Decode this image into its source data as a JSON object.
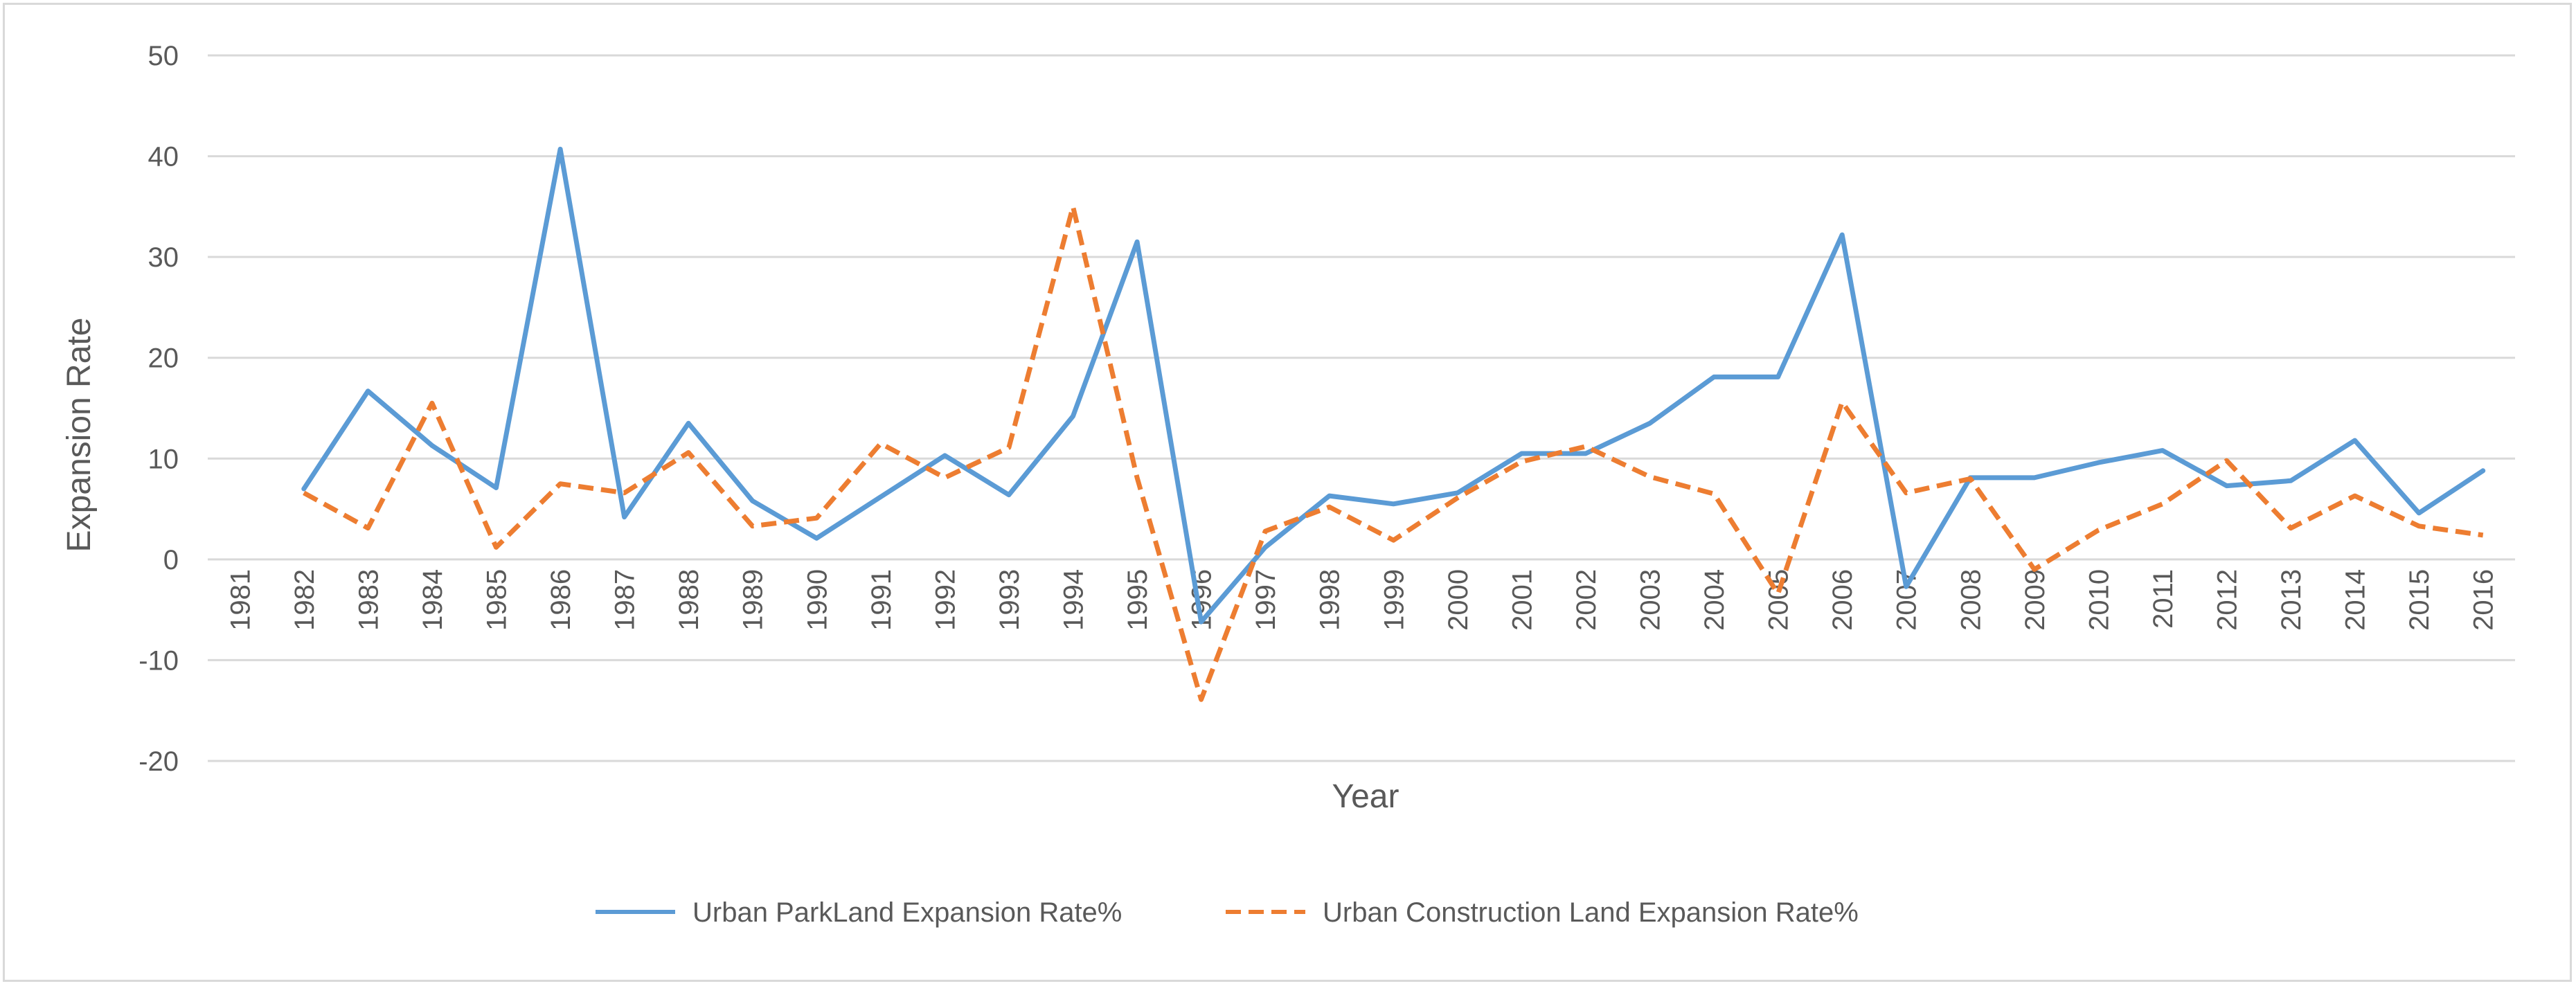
{
  "chart_data": {
    "type": "line",
    "title": "",
    "xlabel": "Year",
    "ylabel": "Expansion Rate",
    "ylim": [
      -20,
      50
    ],
    "yticks": [
      -20,
      -10,
      0,
      10,
      20,
      30,
      40,
      50
    ],
    "grid": true,
    "legend_position": "bottom",
    "categories": [
      "1981",
      "1982",
      "1983",
      "1984",
      "1985",
      "1986",
      "1987",
      "1988",
      "1989",
      "1990",
      "1991",
      "1992",
      "1993",
      "1994",
      "1995",
      "1996",
      "1997",
      "1998",
      "1999",
      "2000",
      "2001",
      "2002",
      "2003",
      "2004",
      "2005",
      "2006",
      "2007",
      "2008",
      "2009",
      "2010",
      "2011",
      "2012",
      "2013",
      "2014",
      "2015",
      "2016"
    ],
    "series": [
      {
        "name": "Urban ParkLand Expansion Rate%",
        "color": "#5b9bd5",
        "dash": "solid",
        "values": [
          null,
          7,
          16.7,
          11.3,
          7.1,
          40.7,
          4.2,
          13.5,
          5.8,
          2.1,
          6.2,
          10.3,
          6.4,
          14.2,
          31.5,
          -6.2,
          1.2,
          6.3,
          5.5,
          6.6,
          10.5,
          10.5,
          13.5,
          18.1,
          18.1,
          32.2,
          -2.7,
          8.1,
          8.1,
          9.6,
          10.8,
          7.3,
          7.8,
          11.8,
          4.6,
          8.8
        ]
      },
      {
        "name": "Urban Construction Land Expansion Rate%",
        "color": "#ed7d31",
        "dash": "dashed",
        "values": [
          null,
          6.6,
          3.1,
          15.5,
          1.2,
          7.5,
          6.6,
          10.6,
          3.3,
          4.1,
          11.5,
          8.1,
          11.1,
          35,
          8.1,
          -13.9,
          2.8,
          5.2,
          1.9,
          6.1,
          9.7,
          11.2,
          8.2,
          6.5,
          -3.4,
          15.6,
          6.6,
          8,
          -1,
          2.9,
          5.5,
          9.8,
          3.1,
          6.3,
          3.3,
          2.4
        ]
      }
    ]
  }
}
